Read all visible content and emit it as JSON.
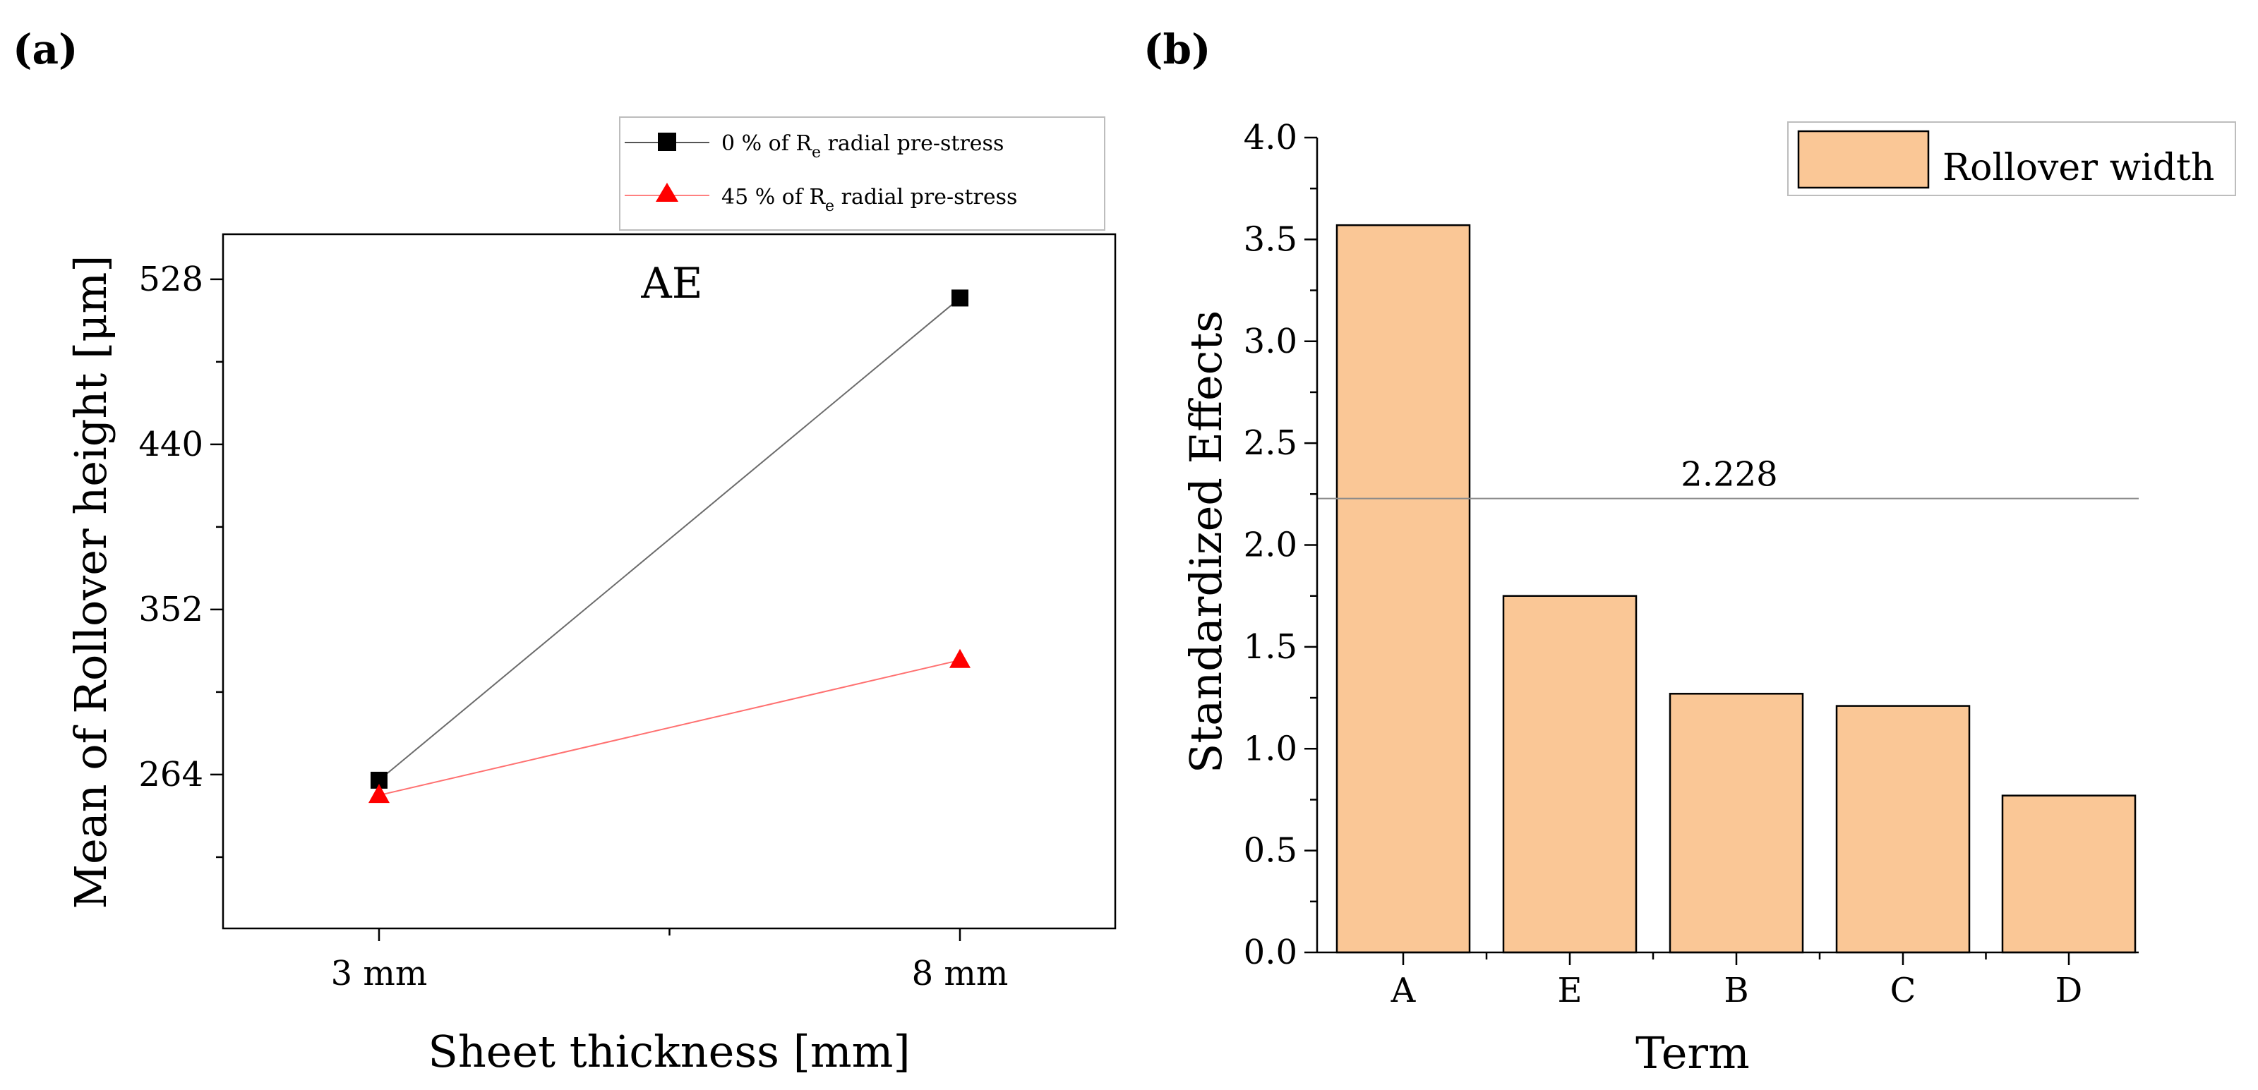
{
  "panel_labels": {
    "a": "(a)",
    "b": "(b)"
  },
  "chart_data": [
    {
      "type": "line",
      "panel": "(a)",
      "annotation": "AE",
      "xlabel": "Sheet thickness [mm]",
      "ylabel": "Mean of Rollover height [μm]",
      "categories": [
        "3 mm",
        "8 mm"
      ],
      "ylim": [
        182,
        552
      ],
      "yticks": [
        264,
        352,
        440,
        528
      ],
      "series": [
        {
          "name": "0 %  of Re radial pre-stress",
          "legend_prefix": "0 %  of R",
          "legend_sub": "e",
          "legend_suffix": " radial pre-stress",
          "color": "#000000",
          "marker": "square",
          "values": [
            261,
            518
          ]
        },
        {
          "name": "45 % of Re radial pre-stress",
          "legend_prefix": "45 % of R",
          "legend_sub": "e",
          "legend_suffix": " radial pre-stress",
          "color": "#ff0000",
          "marker": "triangle",
          "values": [
            253,
            325
          ]
        }
      ]
    },
    {
      "type": "bar",
      "panel": "(b)",
      "xlabel": "Term",
      "ylabel": "Standardized Effects",
      "categories": [
        "A",
        "E",
        "B",
        "C",
        "D"
      ],
      "values": [
        3.57,
        1.75,
        1.27,
        1.21,
        0.77
      ],
      "ylim": [
        0,
        4.0
      ],
      "yticks": [
        "0.0",
        "0.5",
        "1.0",
        "1.5",
        "2.0",
        "2.5",
        "3.0",
        "3.5",
        "4.0"
      ],
      "reference_line": {
        "value": 2.228,
        "label": "2.228"
      },
      "legend": "Rollover width",
      "bar_color": "#fac796"
    }
  ]
}
